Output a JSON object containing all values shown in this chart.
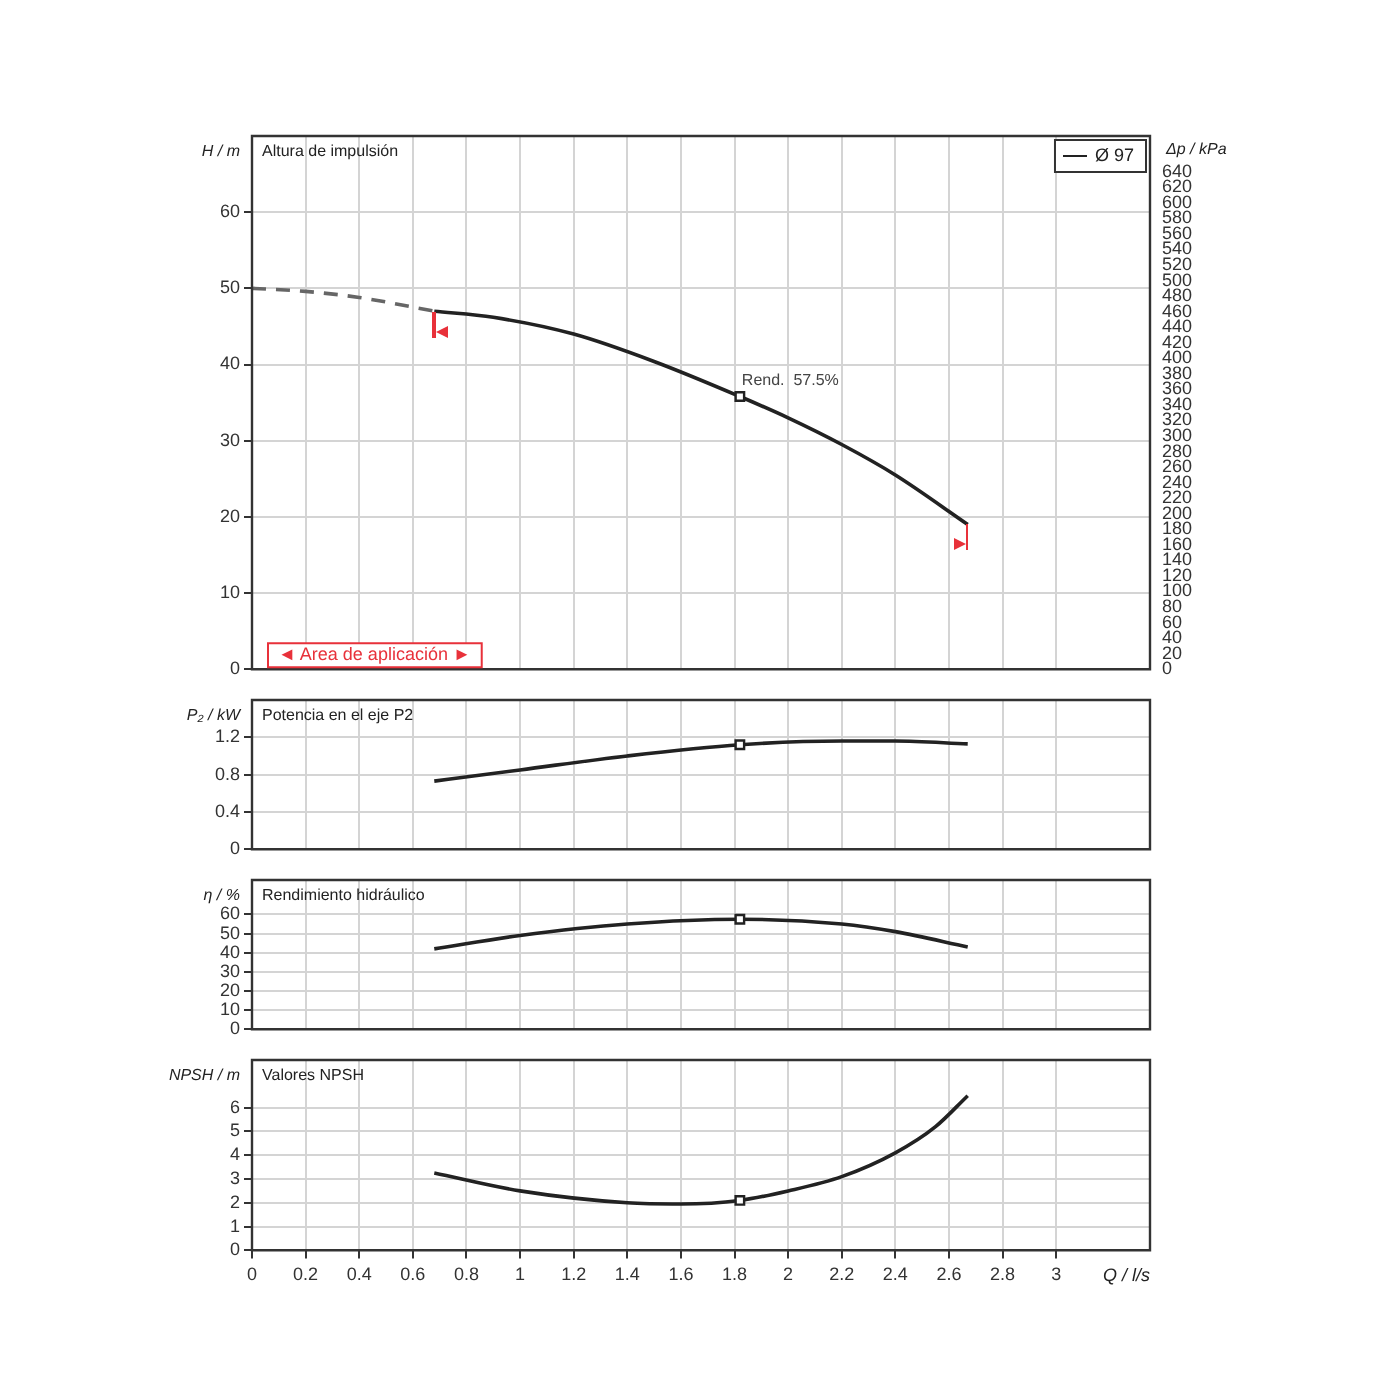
{
  "chart_data": [
    {
      "type": "line",
      "title": "Altura de impulsión",
      "ylabel": "H / m",
      "y2label": "Δp / kPa",
      "xlim": [
        0,
        3.35
      ],
      "xticks": [
        0,
        0.2,
        0.4,
        0.6,
        0.8,
        1,
        1.2,
        1.4,
        1.6,
        1.8,
        2,
        2.2,
        2.4,
        2.6,
        2.8,
        3
      ],
      "ylim": [
        0,
        70
      ],
      "yticks": [
        0,
        10,
        20,
        30,
        40,
        50,
        60
      ],
      "y2lim": [
        0,
        686
      ],
      "y2ticks": [
        0,
        20,
        40,
        60,
        80,
        100,
        120,
        140,
        160,
        180,
        200,
        220,
        240,
        260,
        280,
        300,
        320,
        340,
        360,
        380,
        400,
        420,
        440,
        460,
        480,
        500,
        520,
        540,
        560,
        580,
        600,
        620,
        640
      ],
      "grid": true,
      "legend": "top right",
      "tick_labels": "y",
      "series": [
        {
          "color": "#666666",
          "line_style": "dashed",
          "marker": "none",
          "x": [
            0,
            0.2,
            0.4,
            0.68
          ],
          "values": [
            50,
            49.6,
            48.8,
            47
          ]
        },
        {
          "name": "Ø 97",
          "color": "#222222",
          "line_style": "solid",
          "marker": "none",
          "x": [
            0.68,
            0.9,
            1.2,
            1.5,
            1.82,
            2,
            2.2,
            2.4,
            2.67
          ],
          "values": [
            47,
            46.2,
            44,
            40.4,
            35.8,
            33,
            29.5,
            25.5,
            19
          ]
        },
        {
          "type": "scatter",
          "color": "#222222",
          "marker": "square",
          "x": [
            1.82
          ],
          "values": [
            35.8
          ]
        }
      ],
      "annotations": [
        {
          "text": "Rend.  57.5%",
          "x": 1.82,
          "y": 35.8
        },
        "◄ Area de aplicación ►"
      ]
    },
    {
      "type": "line",
      "title": "Potencia en el eje P2",
      "ylabel": "P₂ / kW",
      "xlim": [
        0,
        3.35
      ],
      "xticks": [
        0,
        0.2,
        0.4,
        0.6,
        0.8,
        1,
        1.2,
        1.4,
        1.6,
        1.8,
        2,
        2.2,
        2.4,
        2.6,
        2.8,
        3
      ],
      "ylim": [
        0,
        1.6
      ],
      "yticks": [
        0,
        0.4,
        0.8,
        1.2
      ],
      "grid": true,
      "tick_labels": "y",
      "series": [
        {
          "color": "#222222",
          "line_style": "solid",
          "marker": "none",
          "x": [
            0.68,
            1,
            1.4,
            1.82,
            2.2,
            2.4,
            2.67
          ],
          "values": [
            0.73,
            0.85,
            1,
            1.12,
            1.16,
            1.16,
            1.13
          ]
        },
        {
          "type": "scatter",
          "color": "#222222",
          "marker": "square",
          "x": [
            1.82
          ],
          "values": [
            1.12
          ]
        }
      ]
    },
    {
      "type": "line",
      "title": "Rendimiento hidráulico",
      "ylabel": "η / %",
      "xlim": [
        0,
        3.35
      ],
      "xticks": [
        0,
        0.2,
        0.4,
        0.6,
        0.8,
        1,
        1.2,
        1.4,
        1.6,
        1.8,
        2,
        2.2,
        2.4,
        2.6,
        2.8,
        3
      ],
      "ylim": [
        0,
        78
      ],
      "yticks": [
        0,
        10,
        20,
        30,
        40,
        50,
        60
      ],
      "grid": true,
      "tick_labels": "y",
      "series": [
        {
          "color": "#222222",
          "line_style": "solid",
          "marker": "none",
          "x": [
            0.68,
            1,
            1.4,
            1.82,
            2.2,
            2.4,
            2.67
          ],
          "values": [
            42,
            49,
            55,
            57.5,
            55,
            51,
            43
          ]
        },
        {
          "type": "scatter",
          "color": "#222222",
          "marker": "square",
          "x": [
            1.82
          ],
          "values": [
            57.5
          ]
        }
      ]
    },
    {
      "type": "line",
      "title": "Valores NPSH",
      "ylabel": "NPSH / m",
      "xlabel": "Q / l/s",
      "xlim": [
        0,
        3.35
      ],
      "xticks": [
        0,
        0.2,
        0.4,
        0.6,
        0.8,
        1,
        1.2,
        1.4,
        1.6,
        1.8,
        2,
        2.2,
        2.4,
        2.6,
        2.8,
        3
      ],
      "ylim": [
        0,
        8
      ],
      "yticks": [
        0,
        1,
        2,
        3,
        4,
        5,
        6
      ],
      "grid": true,
      "series": [
        {
          "color": "#222222",
          "line_style": "solid",
          "marker": "none",
          "x": [
            0.68,
            1,
            1.4,
            1.6,
            1.82,
            2,
            2.2,
            2.4,
            2.55,
            2.67
          ],
          "values": [
            3.25,
            2.5,
            2,
            1.95,
            2.1,
            2.5,
            3.1,
            4.1,
            5.2,
            6.5
          ]
        },
        {
          "type": "scatter",
          "color": "#222222",
          "marker": "square",
          "x": [
            1.82
          ],
          "values": [
            2.1
          ]
        }
      ]
    }
  ]
}
